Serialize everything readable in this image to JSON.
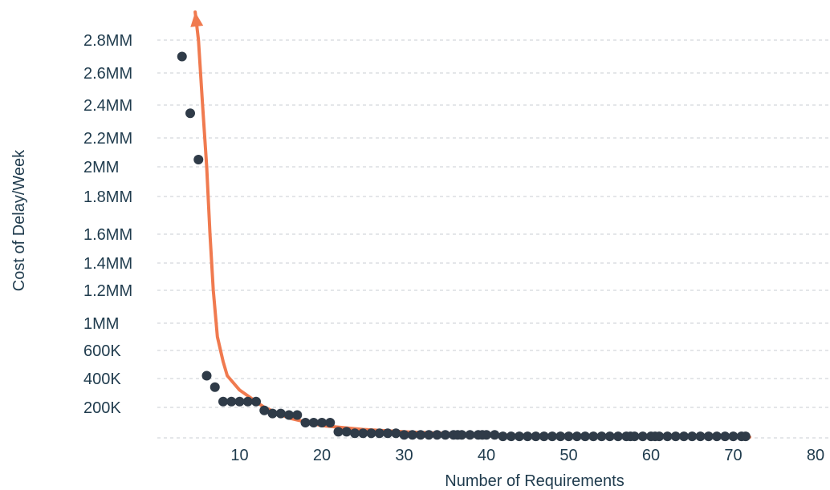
{
  "chart_data": {
    "type": "scatter",
    "title": "",
    "xlabel": "Number of Requirements",
    "ylabel": "Cost of Delay/Week",
    "xlim": [
      0,
      80
    ],
    "x_ticks": [
      10,
      20,
      30,
      40,
      50,
      60,
      70,
      80
    ],
    "y_ticks": [
      {
        "label": "200K",
        "value": 200000
      },
      {
        "label": "400K",
        "value": 400000
      },
      {
        "label": "600K",
        "value": 600000
      },
      {
        "label": "1MM",
        "value": 1000000
      },
      {
        "label": "1.2MM",
        "value": 1200000
      },
      {
        "label": "1.4MM",
        "value": 1400000
      },
      {
        "label": "1.6MM",
        "value": 1600000
      },
      {
        "label": "1.8MM",
        "value": 1800000
      },
      {
        "label": "2MM",
        "value": 2000000
      },
      {
        "label": "2.2MM",
        "value": 2200000
      },
      {
        "label": "2.4MM",
        "value": 2400000
      },
      {
        "label": "2.6MM",
        "value": 2600000
      },
      {
        "label": "2.8MM",
        "value": 2800000
      }
    ],
    "grid": "horizontal dashed",
    "series": [
      {
        "color": "#2f3b48",
        "points": [
          [
            3,
            2700000
          ],
          [
            4,
            2350000
          ],
          [
            5,
            2050000
          ],
          [
            6,
            420000
          ],
          [
            7,
            340000
          ],
          [
            8,
            240000
          ],
          [
            9,
            240000
          ],
          [
            10,
            240000
          ],
          [
            11,
            240000
          ],
          [
            12,
            240000
          ],
          [
            13,
            180000
          ],
          [
            14,
            160000
          ],
          [
            15,
            160000
          ],
          [
            16,
            150000
          ],
          [
            17,
            150000
          ],
          [
            18,
            100000
          ],
          [
            19,
            100000
          ],
          [
            20,
            100000
          ],
          [
            21,
            100000
          ],
          [
            22,
            40000
          ],
          [
            23,
            40000
          ],
          [
            24,
            30000
          ],
          [
            25,
            30000
          ],
          [
            26,
            30000
          ],
          [
            27,
            30000
          ],
          [
            28,
            30000
          ],
          [
            29,
            30000
          ],
          [
            30,
            20000
          ],
          [
            31,
            20000
          ],
          [
            32,
            20000
          ],
          [
            33,
            20000
          ],
          [
            34,
            20000
          ],
          [
            35,
            20000
          ],
          [
            36,
            20000
          ],
          [
            36.5,
            20000
          ],
          [
            37,
            20000
          ],
          [
            38,
            20000
          ],
          [
            39,
            20000
          ],
          [
            39.5,
            20000
          ],
          [
            40,
            20000
          ],
          [
            41,
            20000
          ],
          [
            42,
            10000
          ],
          [
            43,
            10000
          ],
          [
            44,
            10000
          ],
          [
            45,
            10000
          ],
          [
            46,
            10000
          ],
          [
            47,
            10000
          ],
          [
            48,
            10000
          ],
          [
            49,
            10000
          ],
          [
            50,
            10000
          ],
          [
            51,
            10000
          ],
          [
            52,
            10000
          ],
          [
            53,
            10000
          ],
          [
            54,
            10000
          ],
          [
            55,
            10000
          ],
          [
            56,
            10000
          ],
          [
            57,
            10000
          ],
          [
            57.5,
            10000
          ],
          [
            58,
            10000
          ],
          [
            59,
            10000
          ],
          [
            60,
            10000
          ],
          [
            60.5,
            10000
          ],
          [
            61,
            10000
          ],
          [
            62,
            10000
          ],
          [
            63,
            10000
          ],
          [
            64,
            10000
          ],
          [
            65,
            10000
          ],
          [
            66,
            10000
          ],
          [
            67,
            10000
          ],
          [
            68,
            10000
          ],
          [
            69,
            10000
          ],
          [
            70,
            10000
          ],
          [
            71,
            10000
          ],
          [
            71.5,
            10000
          ]
        ]
      }
    ],
    "trendline": {
      "color": "#f07a4f",
      "arrow": "top",
      "points": [
        [
          72,
          5000
        ],
        [
          60,
          8000
        ],
        [
          50,
          12000
        ],
        [
          40,
          20000
        ],
        [
          30,
          40000
        ],
        [
          25,
          55000
        ],
        [
          20,
          80000
        ],
        [
          16,
          130000
        ],
        [
          13,
          200000
        ],
        [
          10,
          320000
        ],
        [
          8.5,
          420000
        ],
        [
          8,
          520000
        ],
        [
          7.3,
          800000
        ],
        [
          6.8,
          1200000
        ],
        [
          6.4,
          1600000
        ],
        [
          6,
          2000000
        ],
        [
          5.5,
          2400000
        ],
        [
          5,
          2800000
        ],
        [
          4.6,
          3050000
        ]
      ]
    }
  }
}
